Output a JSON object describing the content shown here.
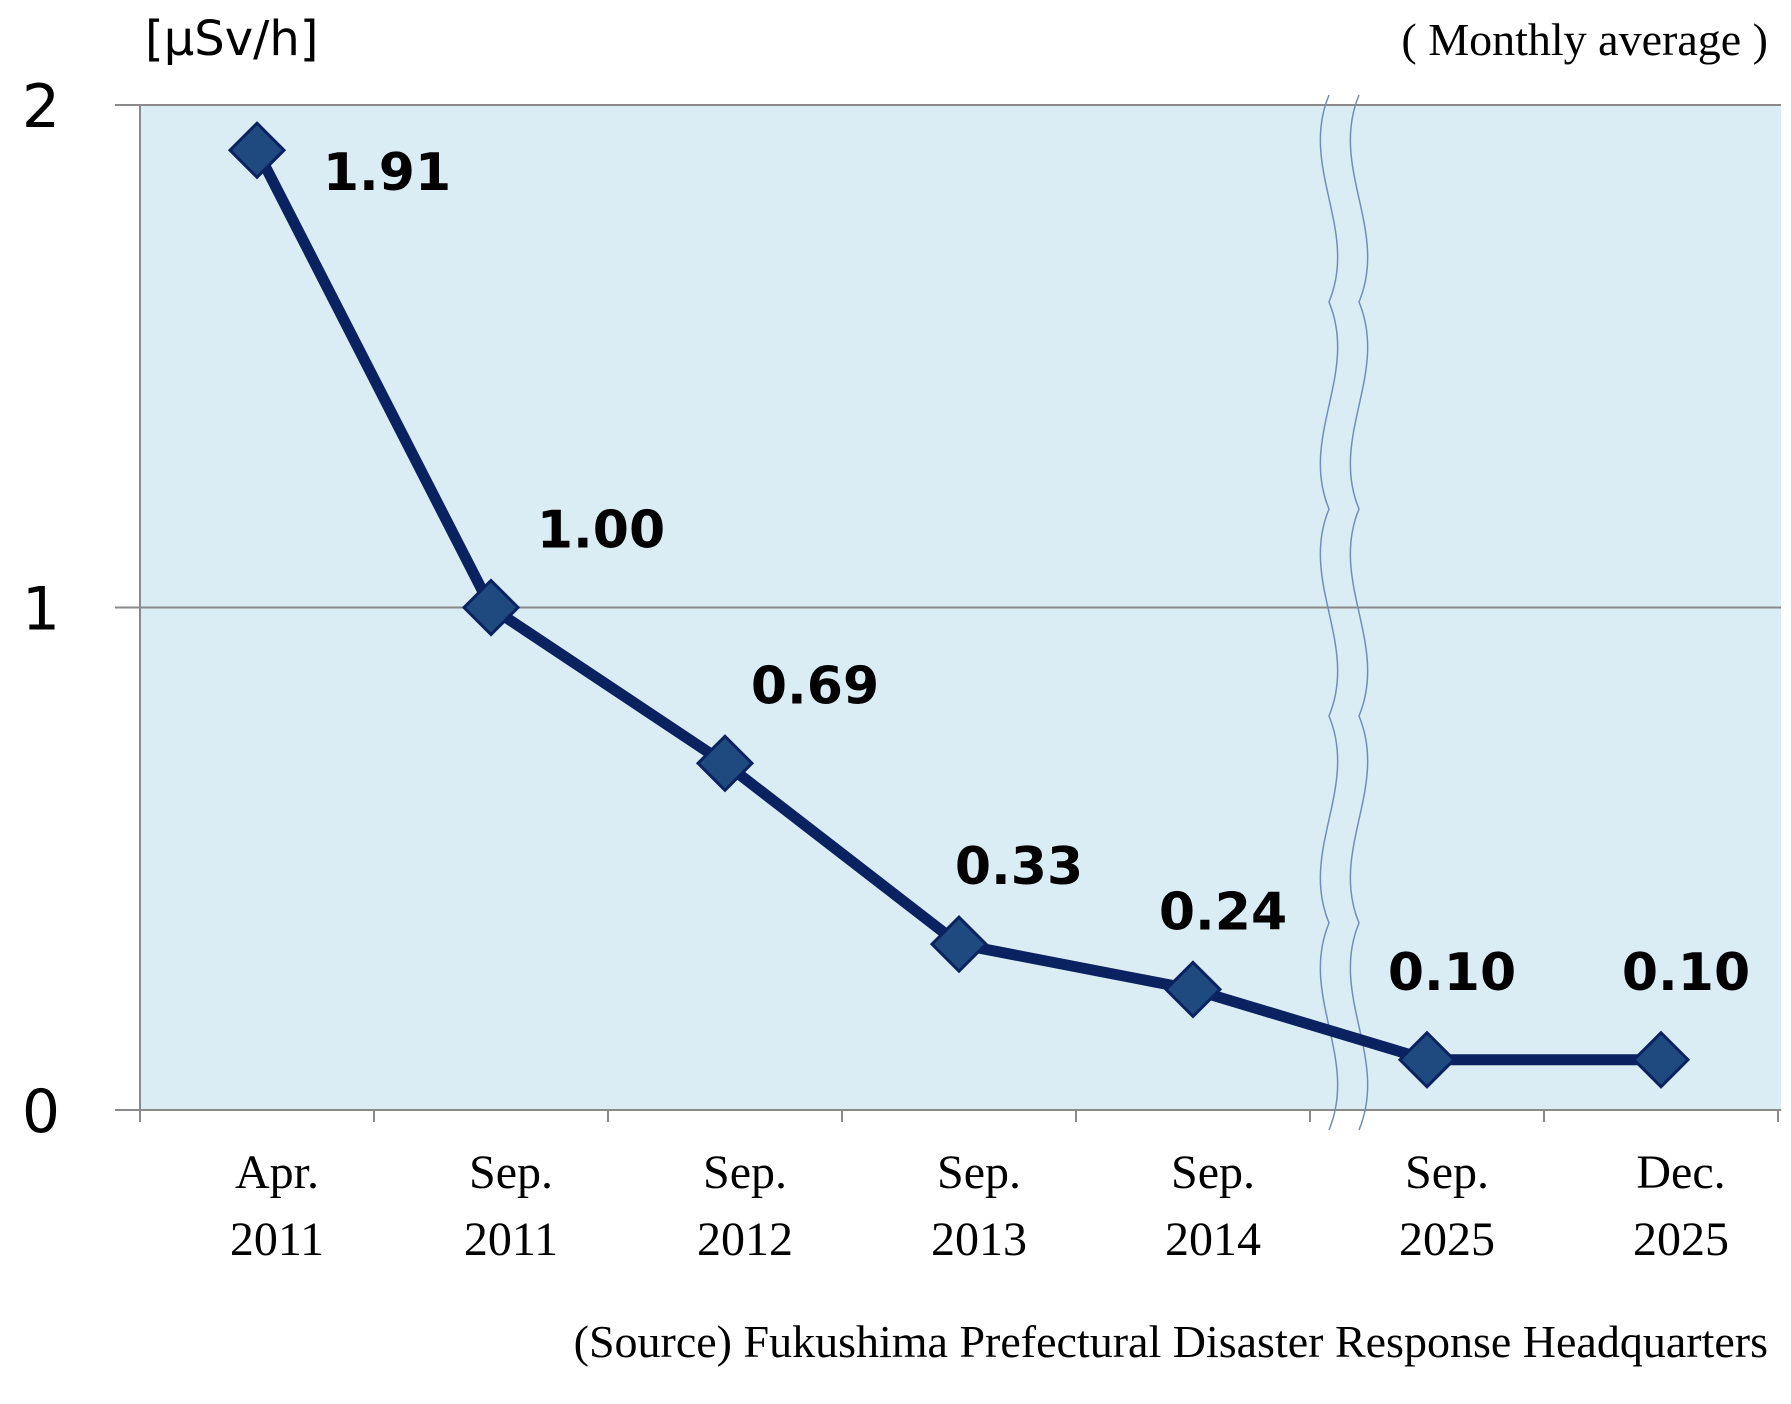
{
  "chart_data": {
    "type": "line",
    "unit_label": "[μSv/h]",
    "note": "( Monthly average )",
    "source": "(Source) Fukushima Prefectural Disaster Response Headquarters",
    "categories": [
      {
        "line1": "Apr.",
        "line2": "2011"
      },
      {
        "line1": "Sep.",
        "line2": "2011"
      },
      {
        "line1": "Sep.",
        "line2": "2012"
      },
      {
        "line1": "Sep.",
        "line2": "2013"
      },
      {
        "line1": "Sep.",
        "line2": "2014"
      },
      {
        "line1": "Sep.",
        "line2": "2025"
      },
      {
        "line1": "Dec.",
        "line2": "2025"
      }
    ],
    "values": [
      1.91,
      1.0,
      0.69,
      0.33,
      0.24,
      0.1,
      0.1
    ],
    "data_labels": [
      "1.91",
      "1.00",
      "0.69",
      "0.33",
      "0.24",
      "0.10",
      "0.10"
    ],
    "ylim": [
      0,
      2
    ],
    "yticks": [
      "0",
      "1",
      "2"
    ],
    "grid": true,
    "axis_break": "between Sep. 2014 and Sep. 2025",
    "colors": {
      "plot_background": "#dbedf4",
      "line": "#0b2260",
      "marker_fill": "#1f4a80",
      "marker_stroke": "#0b2260",
      "gridline": "#8a8a8a",
      "axis": "#8a8a8a",
      "break_line": "#6f8fb8"
    }
  }
}
